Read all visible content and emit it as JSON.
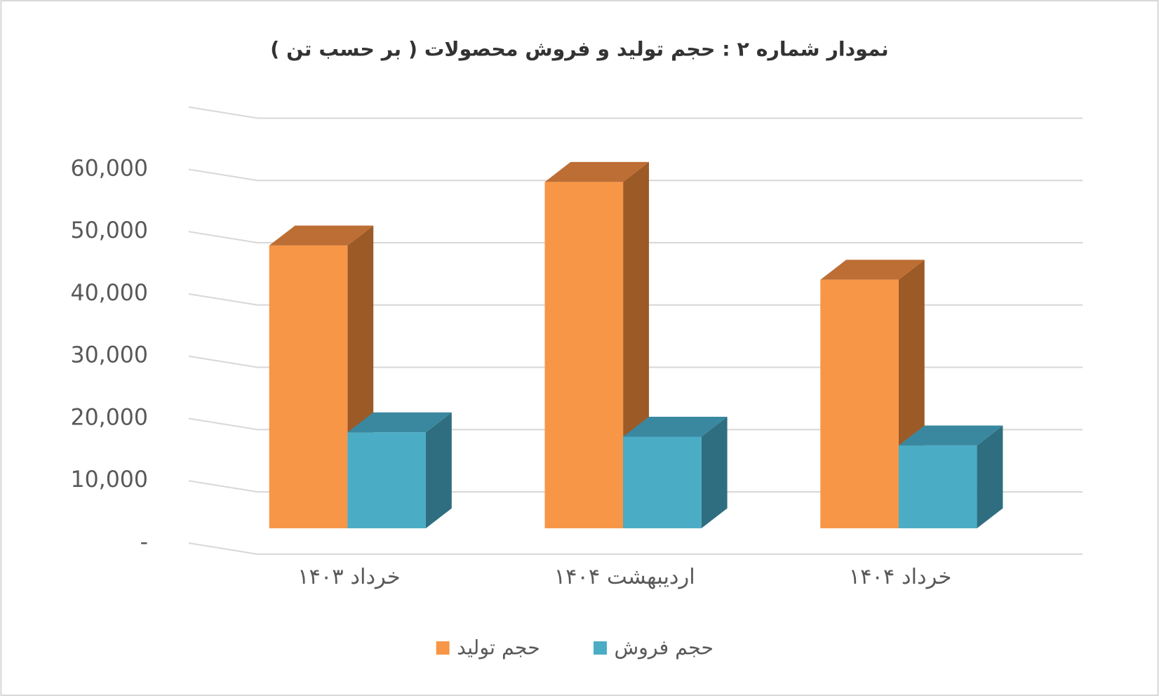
{
  "chart_data": {
    "type": "bar3d",
    "title": "نمودار شماره ۲ : حجم  تولید و فروش محصولات ( بر حسب تن )",
    "categories": [
      "خرداد ۱۴۰۳",
      "اردیبهشت ۱۴۰۴",
      "خرداد ۱۴۰۴"
    ],
    "series": [
      {
        "name": "حجم تولید",
        "color": "#F79646",
        "top_color": "#BD6E34",
        "side_color": "#9C5A27",
        "values": [
          45400,
          55600,
          39900
        ]
      },
      {
        "name": "حجم فروش",
        "color": "#4BACC6",
        "top_color": "#3A88A0",
        "side_color": "#2E6E80",
        "values": [
          15400,
          14700,
          13300
        ]
      }
    ],
    "ylim": [
      0,
      70000
    ],
    "yticks": [
      {
        "value": 0,
        "label": "-"
      },
      {
        "value": 10000,
        "label": "10,000"
      },
      {
        "value": 20000,
        "label": "20,000"
      },
      {
        "value": 30000,
        "label": "30,000"
      },
      {
        "value": 40000,
        "label": "40,000"
      },
      {
        "value": 50000,
        "label": "50,000"
      },
      {
        "value": 60000,
        "label": "60,000"
      }
    ],
    "grid": true,
    "legend": "bottom"
  }
}
